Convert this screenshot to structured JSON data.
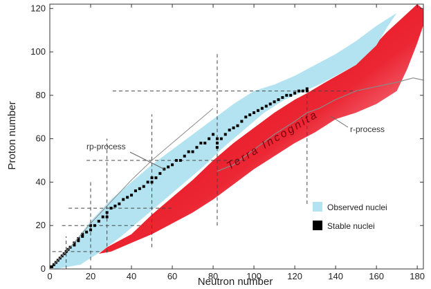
{
  "chart_data": {
    "type": "scatter",
    "xlabel": "Neutron number",
    "ylabel": "Proton number",
    "xlim": [
      0,
      183
    ],
    "ylim": [
      0,
      122
    ],
    "xticks": [
      "0",
      "20",
      "40",
      "60",
      "80",
      "100",
      "120",
      "140",
      "160",
      "180"
    ],
    "yticks": [
      "0",
      "20",
      "40",
      "60",
      "80",
      "100",
      "120"
    ],
    "grid": false,
    "legend_placement": "bottom-right",
    "legend": [
      {
        "key": "observed",
        "label": "Observed nuclei",
        "color": "#b3e3f0"
      },
      {
        "key": "stable",
        "label": "Stable nuclei",
        "color": "#000000"
      }
    ],
    "annotations": {
      "rp": "rp-process",
      "r": "r-process",
      "terra": "Terra Incognita"
    },
    "colors": {
      "observed": "#b3e3f0",
      "unknown_dark": "#e8000f",
      "unknown_light": "#ff8fb0",
      "stable": "#000000",
      "magic_lines": "#444444"
    },
    "magic_numbers": [
      8,
      20,
      28,
      50,
      82,
      126
    ],
    "observed_region": {
      "upper_boundary": [
        [
          0,
          1
        ],
        [
          10,
          10
        ],
        [
          20,
          22
        ],
        [
          30,
          32
        ],
        [
          40,
          40
        ],
        [
          50,
          48
        ],
        [
          60,
          55
        ],
        [
          70,
          62
        ],
        [
          80,
          69
        ],
        [
          90,
          76
        ],
        [
          100,
          82
        ],
        [
          110,
          85
        ],
        [
          120,
          89
        ],
        [
          130,
          94
        ],
        [
          140,
          99
        ],
        [
          150,
          105
        ],
        [
          160,
          112
        ],
        [
          170,
          118
        ]
      ],
      "lower_boundary": [
        [
          170,
          118
        ],
        [
          165,
          111
        ],
        [
          160,
          103
        ],
        [
          150,
          94
        ],
        [
          140,
          89
        ],
        [
          132,
          85
        ],
        [
          125,
          82
        ],
        [
          115,
          78
        ],
        [
          105,
          72
        ],
        [
          95,
          64
        ],
        [
          85,
          56
        ],
        [
          75,
          47
        ],
        [
          65,
          39
        ],
        [
          55,
          31
        ],
        [
          45,
          23
        ],
        [
          35,
          15
        ],
        [
          25,
          8
        ],
        [
          15,
          2
        ],
        [
          3,
          0
        ]
      ]
    },
    "unknown_region": {
      "upper_boundary": [
        [
          28,
          10
        ],
        [
          40,
          16
        ],
        [
          50,
          25
        ],
        [
          60,
          33
        ],
        [
          70,
          41
        ],
        [
          80,
          50
        ],
        [
          90,
          58
        ],
        [
          100,
          65
        ],
        [
          110,
          72
        ],
        [
          120,
          78
        ],
        [
          126,
          81
        ],
        [
          135,
          86
        ],
        [
          150,
          94
        ],
        [
          165,
          109
        ],
        [
          180,
          122
        ]
      ],
      "lower_boundary": [
        [
          185,
          118
        ],
        [
          180,
          104
        ],
        [
          175,
          92
        ],
        [
          170,
          82
        ],
        [
          160,
          76
        ],
        [
          150,
          72
        ],
        [
          140,
          69
        ],
        [
          130,
          63
        ],
        [
          120,
          58
        ],
        [
          110,
          52
        ],
        [
          100,
          46
        ],
        [
          90,
          39
        ],
        [
          80,
          32
        ],
        [
          70,
          26
        ],
        [
          60,
          21
        ],
        [
          50,
          16
        ],
        [
          40,
          12
        ],
        [
          30,
          8
        ],
        [
          24,
          7
        ]
      ]
    },
    "stable_nuclei": [
      [
        0,
        1
      ],
      [
        1,
        1
      ],
      [
        2,
        2
      ],
      [
        3,
        3
      ],
      [
        4,
        4
      ],
      [
        5,
        5
      ],
      [
        6,
        6
      ],
      [
        7,
        7
      ],
      [
        8,
        8
      ],
      [
        9,
        9
      ],
      [
        10,
        10
      ],
      [
        12,
        11
      ],
      [
        12,
        12
      ],
      [
        14,
        13
      ],
      [
        14,
        14
      ],
      [
        16,
        15
      ],
      [
        16,
        16
      ],
      [
        18,
        17
      ],
      [
        20,
        18
      ],
      [
        20,
        20
      ],
      [
        22,
        20
      ],
      [
        24,
        22
      ],
      [
        26,
        24
      ],
      [
        28,
        24
      ],
      [
        28,
        26
      ],
      [
        30,
        28
      ],
      [
        32,
        29
      ],
      [
        34,
        30
      ],
      [
        36,
        32
      ],
      [
        38,
        33
      ],
      [
        40,
        34
      ],
      [
        42,
        36
      ],
      [
        44,
        37
      ],
      [
        46,
        38
      ],
      [
        48,
        40
      ],
      [
        50,
        40
      ],
      [
        50,
        42
      ],
      [
        52,
        42
      ],
      [
        54,
        44
      ],
      [
        56,
        46
      ],
      [
        58,
        47
      ],
      [
        60,
        48
      ],
      [
        62,
        50
      ],
      [
        64,
        50
      ],
      [
        66,
        52
      ],
      [
        68,
        54
      ],
      [
        70,
        54
      ],
      [
        72,
        56
      ],
      [
        74,
        58
      ],
      [
        76,
        58
      ],
      [
        78,
        60
      ],
      [
        80,
        62
      ],
      [
        82,
        56
      ],
      [
        82,
        58
      ],
      [
        82,
        60
      ],
      [
        84,
        60
      ],
      [
        86,
        62
      ],
      [
        88,
        64
      ],
      [
        90,
        65
      ],
      [
        92,
        66
      ],
      [
        94,
        68
      ],
      [
        96,
        70
      ],
      [
        98,
        71
      ],
      [
        100,
        72
      ],
      [
        102,
        73
      ],
      [
        104,
        74
      ],
      [
        106,
        75
      ],
      [
        108,
        76
      ],
      [
        110,
        77
      ],
      [
        112,
        78
      ],
      [
        114,
        79
      ],
      [
        116,
        80
      ],
      [
        118,
        80
      ],
      [
        120,
        81
      ],
      [
        122,
        82
      ],
      [
        124,
        82
      ],
      [
        126,
        82
      ],
      [
        126,
        83
      ]
    ],
    "r_process_path": [
      [
        82,
        45
      ],
      [
        90,
        48
      ],
      [
        100,
        55
      ],
      [
        110,
        62
      ],
      [
        120,
        68
      ],
      [
        126,
        72
      ],
      [
        132,
        74
      ],
      [
        140,
        78
      ],
      [
        150,
        82
      ],
      [
        160,
        84
      ],
      [
        170,
        86
      ],
      [
        178,
        88
      ],
      [
        183,
        87
      ]
    ],
    "rp_process_path": [
      [
        2,
        2
      ],
      [
        10,
        10
      ],
      [
        20,
        21
      ],
      [
        30,
        31
      ],
      [
        40,
        41
      ],
      [
        50,
        50
      ],
      [
        60,
        58
      ],
      [
        70,
        66
      ],
      [
        80,
        74
      ]
    ],
    "terra_position": [
      110,
      58
    ]
  }
}
